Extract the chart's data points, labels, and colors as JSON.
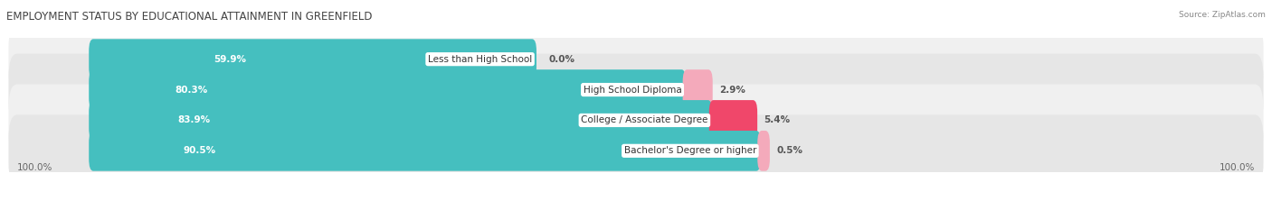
{
  "title": "EMPLOYMENT STATUS BY EDUCATIONAL ATTAINMENT IN GREENFIELD",
  "source": "Source: ZipAtlas.com",
  "categories": [
    "Less than High School",
    "High School Diploma",
    "College / Associate Degree",
    "Bachelor's Degree or higher"
  ],
  "labor_force_pct": [
    59.9,
    80.3,
    83.9,
    90.5
  ],
  "unemployed_pct": [
    0.0,
    2.9,
    5.4,
    0.5
  ],
  "labor_force_color": "#45BFBF",
  "unemployed_color_0": "#F4AABB",
  "unemployed_color_1": "#F4AABB",
  "unemployed_color_2": "#F0476A",
  "unemployed_color_3": "#F4AABB",
  "unemployed_colors": [
    "#F4AABB",
    "#F4AABB",
    "#F0476A",
    "#F4AABB"
  ],
  "row_bg_colors": [
    "#F0F0F0",
    "#E6E6E6",
    "#F0F0F0",
    "#E6E6E6"
  ],
  "background_color": "#FFFFFF",
  "title_fontsize": 8.5,
  "label_fontsize": 7.5,
  "category_fontsize": 7.5,
  "source_fontsize": 6.5,
  "axis_label_left": "100.0%",
  "axis_label_right": "100.0%"
}
